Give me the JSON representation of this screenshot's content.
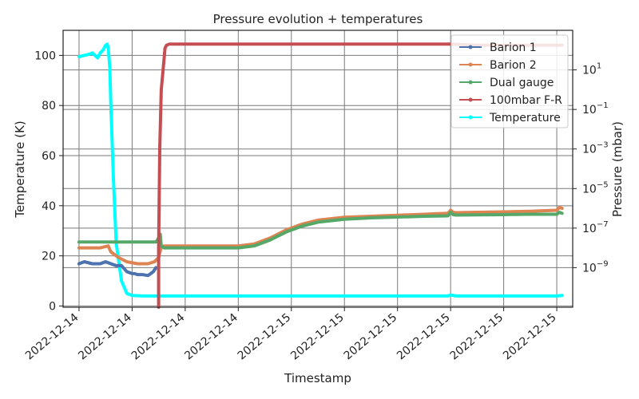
{
  "chart_data": {
    "type": "line",
    "title": "Pressure evolution + temperatures",
    "xlabel": "Timestamp",
    "ylabel_left": "Temperature (K)",
    "ylabel_right": "Pressure (mbar)",
    "x_ticks": [
      "2022-12-14",
      "2022-12-14",
      "2022-12-14",
      "2022-12-14",
      "2022-12-15",
      "2022-12-15",
      "2022-12-15",
      "2022-12-15",
      "2022-12-15",
      "2022-12-15"
    ],
    "x_range": [
      -0.3,
      9.3
    ],
    "y_left": {
      "range": [
        -0.5,
        110
      ],
      "ticks": [
        0,
        20,
        40,
        60,
        80,
        100
      ]
    },
    "y_right": {
      "scale": "log",
      "range_exp": [
        -11,
        3
      ],
      "ticks": [
        {
          "exp": -9,
          "label": "10",
          "sup": "−9"
        },
        {
          "exp": -7,
          "label": "10",
          "sup": "−7"
        },
        {
          "exp": -5,
          "label": "10",
          "sup": "−5"
        },
        {
          "exp": -3,
          "label": "10",
          "sup": "−3"
        },
        {
          "exp": -1,
          "label": "10",
          "sup": "−1"
        },
        {
          "exp": 1,
          "label": "10",
          "sup": "1"
        }
      ]
    },
    "grid": true,
    "legend_position": "top-right",
    "series": [
      {
        "name": "Barion 1",
        "color": "#4c72b0",
        "axis": "right",
        "x": [
          0.0,
          0.1,
          0.25,
          0.4,
          0.5,
          0.6,
          0.7,
          0.8,
          0.9,
          1.0,
          1.05,
          1.1,
          1.2,
          1.3,
          1.35,
          1.4,
          1.45
        ],
        "y": [
          -8.8,
          -8.7,
          -8.8,
          -8.8,
          -8.7,
          -8.8,
          -8.9,
          -8.9,
          -9.2,
          -9.3,
          -9.3,
          -9.35,
          -9.35,
          -9.4,
          -9.3,
          -9.2,
          -9.0
        ]
      },
      {
        "name": "Barion 2",
        "color": "#dd8452",
        "axis": "right",
        "x": [
          0.0,
          0.2,
          0.4,
          0.55,
          0.6,
          0.75,
          0.9,
          1.1,
          1.3,
          1.42,
          1.5,
          1.55,
          1.6,
          2.0,
          2.5,
          3.0,
          3.3,
          3.6,
          3.9,
          4.2,
          4.5,
          5.0,
          5.5,
          6.0,
          6.5,
          6.95,
          7.0,
          7.05,
          7.1,
          7.5,
          8.0,
          8.5,
          9.0,
          9.05,
          9.1
        ],
        "y": [
          -8.0,
          -8.0,
          -8.0,
          -7.9,
          -8.2,
          -8.5,
          -8.7,
          -8.8,
          -8.8,
          -8.7,
          -8.5,
          -7.95,
          -7.9,
          -7.9,
          -7.9,
          -7.9,
          -7.8,
          -7.5,
          -7.1,
          -6.8,
          -6.6,
          -6.45,
          -6.4,
          -6.35,
          -6.3,
          -6.25,
          -6.1,
          -6.2,
          -6.22,
          -6.2,
          -6.18,
          -6.15,
          -6.1,
          -5.95,
          -6.0
        ]
      },
      {
        "name": "Dual gauge",
        "color": "#55a868",
        "axis": "right",
        "x": [
          0.0,
          0.3,
          0.6,
          0.9,
          1.2,
          1.45,
          1.5,
          1.53,
          1.55,
          1.6,
          2.0,
          2.5,
          3.0,
          3.3,
          3.6,
          3.9,
          4.2,
          4.5,
          5.0,
          5.5,
          6.0,
          6.5,
          6.95,
          7.0,
          7.05,
          7.1,
          7.5,
          8.0,
          8.5,
          9.0,
          9.05,
          9.1
        ],
        "y": [
          -7.7,
          -7.7,
          -7.7,
          -7.7,
          -7.7,
          -7.7,
          -7.5,
          -7.3,
          -7.9,
          -8.0,
          -8.0,
          -8.0,
          -8.0,
          -7.9,
          -7.6,
          -7.2,
          -6.9,
          -6.7,
          -6.55,
          -6.48,
          -6.44,
          -6.4,
          -6.38,
          -6.2,
          -6.32,
          -6.34,
          -6.33,
          -6.32,
          -6.3,
          -6.3,
          -6.2,
          -6.25
        ]
      },
      {
        "name": "100mbar F-R",
        "color": "#c44e52",
        "axis": "right",
        "x": [
          1.5,
          1.5,
          1.52,
          1.55,
          1.6,
          1.62,
          1.65,
          1.7,
          1.75,
          2.5,
          3.5,
          4.5,
          5.5,
          6.5,
          7.0,
          7.5,
          8.0,
          8.5,
          9.0,
          9.1
        ],
        "y": [
          -11.0,
          -8.0,
          -3.0,
          0.0,
          1.5,
          2.1,
          2.25,
          2.3,
          2.3,
          2.3,
          2.3,
          2.3,
          2.3,
          2.3,
          2.3,
          2.25,
          2.25,
          2.25,
          2.25,
          2.25
        ]
      },
      {
        "name": "Temperature",
        "color": "#00ffff",
        "axis": "left",
        "x": [
          0.0,
          0.1,
          0.2,
          0.25,
          0.3,
          0.35,
          0.4,
          0.45,
          0.5,
          0.53,
          0.55,
          0.58,
          0.6,
          0.65,
          0.7,
          0.8,
          0.9,
          1.0,
          1.2,
          1.5,
          2.0,
          3.0,
          4.0,
          5.0,
          6.0,
          6.95,
          7.0,
          7.1,
          8.0,
          9.0,
          9.1
        ],
        "y": [
          99.5,
          100,
          100.5,
          101,
          100,
          99,
          101,
          102,
          104,
          104.5,
          103,
          95,
          80,
          50,
          25,
          10,
          5,
          4.2,
          4.0,
          4.0,
          4.0,
          4.0,
          4.0,
          4.0,
          4.0,
          4.0,
          4.4,
          4.0,
          4.0,
          4.0,
          4.2
        ]
      }
    ]
  }
}
